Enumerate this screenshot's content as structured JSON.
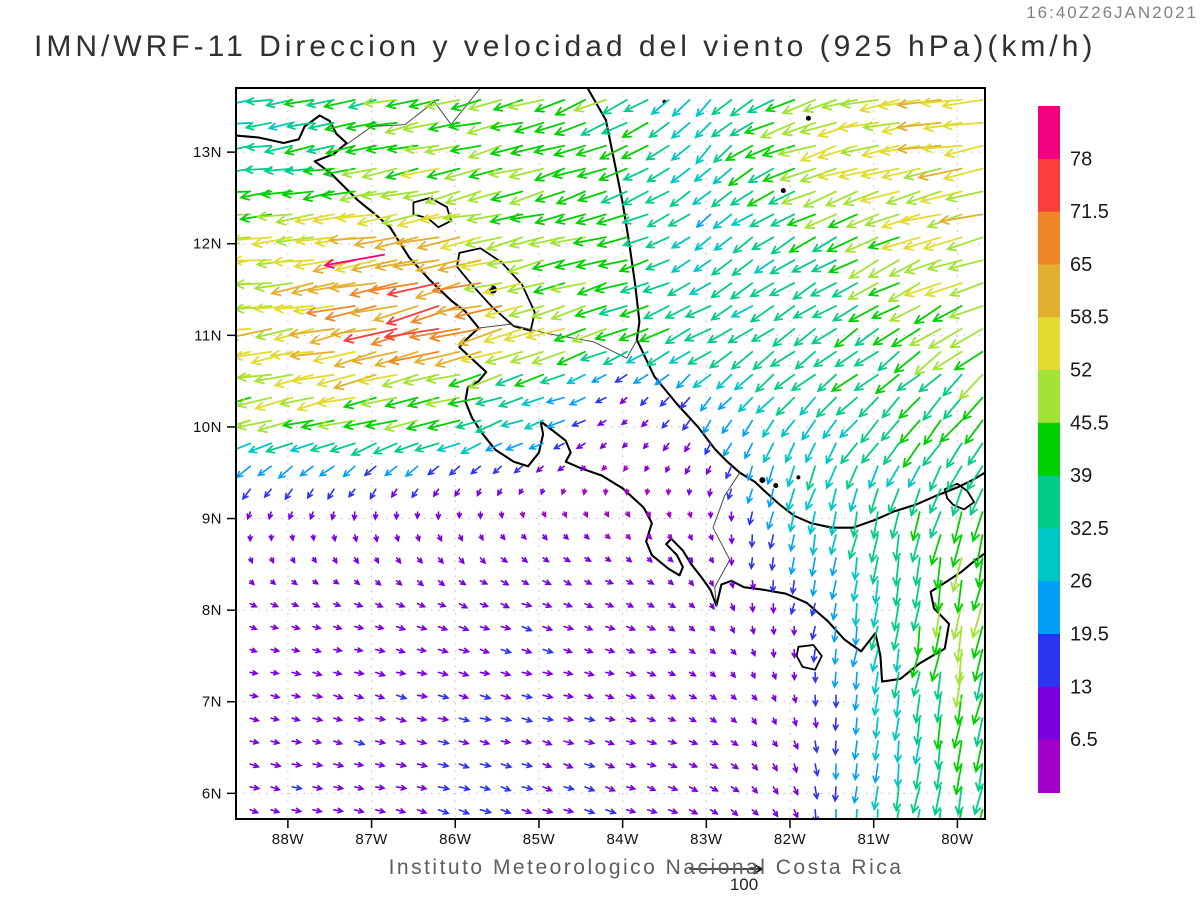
{
  "header": {
    "title": "IMN/WRF-11 Direccion y velocidad del viento (925 hPa)(km/h)",
    "timestamp": "16:40Z26JAN2021"
  },
  "caption": {
    "text": "Instituto Meteorologico Nacional Costa Rica",
    "reference_label": "100"
  },
  "axes": {
    "lat_ticks": [
      {
        "value": 13,
        "label": "13N"
      },
      {
        "value": 12,
        "label": "12N"
      },
      {
        "value": 11,
        "label": "11N"
      },
      {
        "value": 10,
        "label": "10N"
      },
      {
        "value": 9,
        "label": "9N"
      },
      {
        "value": 8,
        "label": "8N"
      },
      {
        "value": 7,
        "label": "7N"
      },
      {
        "value": 6,
        "label": "6N"
      }
    ],
    "lon_ticks": [
      {
        "value": -88,
        "label": "88W"
      },
      {
        "value": -87,
        "label": "87W"
      },
      {
        "value": -86,
        "label": "86W"
      },
      {
        "value": -85,
        "label": "85W"
      },
      {
        "value": -84,
        "label": "84W"
      },
      {
        "value": -83,
        "label": "83W"
      },
      {
        "value": -82,
        "label": "82W"
      },
      {
        "value": -81,
        "label": "81W"
      },
      {
        "value": -80,
        "label": "80W"
      }
    ]
  },
  "colorbar": {
    "labels_top_to_bottom": [
      "78",
      "71.5",
      "65",
      "58.5",
      "52",
      "45.5",
      "39",
      "32.5",
      "26",
      "19.5",
      "13",
      "6.5"
    ]
  },
  "chart_data": {
    "type": "vector_field",
    "title": "IMN/WRF-11 Direccion y velocidad del viento (925 hPa)(km/h)",
    "timestamp": "16:40Z26JAN2021",
    "level": "925 hPa",
    "units": "km/h",
    "lon_range": [
      -88.62,
      -79.67
    ],
    "lat_range": [
      5.72,
      13.7
    ],
    "reference_vector": 100,
    "speed_bin_edges": [
      6.5,
      13,
      19.5,
      26,
      32.5,
      39,
      45.5,
      52,
      58.5,
      65,
      71.5,
      78
    ],
    "speed_bin_colors": [
      "#A500C9",
      "#7A00E0",
      "#2B35F0",
      "#019FF8",
      "#00C6C6",
      "#01CC89",
      "#00D000",
      "#A2E336",
      "#E2DC30",
      "#E3AF2F",
      "#F08627",
      "#FA3D3D",
      "#F0017E"
    ],
    "grid": {
      "lons": [
        -89,
        -88,
        -87,
        -86,
        -85,
        -84,
        -83,
        -82,
        -81,
        -80,
        -79
      ],
      "lats": [
        6,
        7,
        8,
        9,
        9.5,
        10,
        10.5,
        11,
        12,
        13,
        14
      ],
      "u": [
        [
          11,
          12,
          12,
          13,
          12,
          12,
          10,
          5,
          -3,
          -7,
          -6
        ],
        [
          10,
          11,
          12,
          13,
          12,
          11,
          8,
          3,
          -4,
          -8,
          -8
        ],
        [
          8,
          9,
          10,
          11,
          12,
          10,
          6,
          -2,
          -5,
          -8,
          -10
        ],
        [
          -2,
          -1,
          0,
          2,
          4,
          3,
          2,
          -5,
          -8,
          -10,
          -12
        ],
        [
          -15,
          -14,
          -12,
          -10,
          -6,
          -2,
          -4,
          -10,
          -14,
          -16,
          -18
        ],
        [
          -40,
          -42,
          -44,
          -38,
          -26,
          -6,
          -10,
          -15,
          -22,
          -25,
          -28
        ],
        [
          -48,
          -50,
          -52,
          -45,
          -35,
          -10,
          -18,
          -25,
          -30,
          -28,
          -32
        ],
        [
          -52,
          -55,
          -66,
          -74,
          -50,
          -42,
          -35,
          -30,
          -32,
          -40,
          -45
        ],
        [
          -50,
          -52,
          -60,
          -58,
          -45,
          -40,
          -22,
          -28,
          -42,
          -50,
          -55
        ],
        [
          -32,
          -35,
          -40,
          -45,
          -42,
          -36,
          -20,
          -44,
          -52,
          -55,
          -62
        ],
        [
          -30,
          -34,
          -40,
          -44,
          -44,
          -38,
          -14,
          -40,
          -52,
          -58,
          -66
        ]
      ],
      "v": [
        [
          -3,
          -3,
          -3,
          -4,
          -4,
          -4,
          -5,
          -10,
          -28,
          -40,
          -36
        ],
        [
          -2,
          -2,
          -3,
          -3,
          -3,
          -3,
          -4,
          -8,
          -25,
          -42,
          -38
        ],
        [
          -3,
          -3,
          -3,
          -4,
          -4,
          -4,
          -6,
          -12,
          -30,
          -46,
          -40
        ],
        [
          -8,
          -8,
          -9,
          -8,
          -6,
          -4,
          -6,
          -25,
          -35,
          -40,
          -38
        ],
        [
          -14,
          -14,
          -13,
          -10,
          -6,
          -4,
          -10,
          -28,
          -30,
          -32,
          -30
        ],
        [
          -10,
          -10,
          -12,
          -12,
          -10,
          -5,
          -15,
          -25,
          -28,
          -30,
          -32
        ],
        [
          -10,
          -10,
          -12,
          -12,
          -12,
          -8,
          -18,
          -22,
          -25,
          -28,
          -30
        ],
        [
          -8,
          -8,
          -15,
          -18,
          -15,
          -15,
          -18,
          -20,
          -22,
          -25,
          -20
        ],
        [
          -5,
          -6,
          -10,
          -12,
          -10,
          -12,
          -15,
          -18,
          -20,
          -15,
          -12
        ],
        [
          -5,
          -6,
          -8,
          -10,
          -12,
          -16,
          -22,
          -18,
          -12,
          -10,
          -8
        ],
        [
          -6,
          -7,
          -9,
          -9,
          -11,
          -20,
          -24,
          -14,
          -10,
          -10,
          -9
        ]
      ]
    },
    "extra_arrows": [
      {
        "lon": -86.85,
        "lat": 11.88,
        "u": -78,
        "v": -14
      }
    ]
  },
  "map": {
    "features": [
      {
        "name": "pacific-coast",
        "type": "coast",
        "points": [
          [
            -88.62,
            13.18
          ],
          [
            -88.35,
            13.16
          ],
          [
            -88.05,
            13.1
          ],
          [
            -87.87,
            13.14
          ],
          [
            -87.8,
            13.28
          ],
          [
            -87.62,
            13.4
          ],
          [
            -87.5,
            13.34
          ],
          [
            -87.42,
            13.2
          ],
          [
            -87.3,
            13.1
          ],
          [
            -87.45,
            12.98
          ],
          [
            -87.68,
            12.9
          ],
          [
            -87.5,
            12.78
          ],
          [
            -87.17,
            12.48
          ],
          [
            -86.93,
            12.3
          ],
          [
            -86.78,
            12.18
          ],
          [
            -86.55,
            11.85
          ],
          [
            -86.3,
            11.6
          ],
          [
            -86.05,
            11.38
          ],
          [
            -85.88,
            11.26
          ],
          [
            -85.72,
            11.08
          ],
          [
            -85.85,
            10.97
          ],
          [
            -85.95,
            10.87
          ],
          [
            -85.75,
            10.7
          ],
          [
            -85.63,
            10.6
          ],
          [
            -85.72,
            10.5
          ],
          [
            -85.85,
            10.43
          ],
          [
            -85.88,
            10.28
          ],
          [
            -85.8,
            10.1
          ],
          [
            -85.67,
            9.92
          ],
          [
            -85.52,
            9.75
          ],
          [
            -85.3,
            9.62
          ],
          [
            -85.13,
            9.57
          ],
          [
            -85.0,
            9.72
          ],
          [
            -84.95,
            9.92
          ],
          [
            -84.98,
            10.06
          ],
          [
            -84.82,
            9.95
          ],
          [
            -84.68,
            9.85
          ],
          [
            -84.62,
            9.72
          ],
          [
            -84.68,
            9.62
          ],
          [
            -84.5,
            9.55
          ],
          [
            -84.25,
            9.47
          ],
          [
            -84.0,
            9.33
          ],
          [
            -83.75,
            9.12
          ],
          [
            -83.65,
            8.95
          ],
          [
            -83.72,
            8.75
          ],
          [
            -83.65,
            8.6
          ],
          [
            -83.45,
            8.45
          ],
          [
            -83.32,
            8.38
          ],
          [
            -83.28,
            8.47
          ],
          [
            -83.35,
            8.6
          ],
          [
            -83.48,
            8.72
          ],
          [
            -83.42,
            8.78
          ],
          [
            -83.28,
            8.65
          ],
          [
            -83.18,
            8.5
          ],
          [
            -83.05,
            8.35
          ],
          [
            -82.95,
            8.22
          ],
          [
            -82.88,
            8.05
          ],
          [
            -82.82,
            8.28
          ],
          [
            -82.7,
            8.32
          ],
          [
            -82.55,
            8.25
          ],
          [
            -82.3,
            8.22
          ],
          [
            -82.05,
            8.18
          ],
          [
            -81.8,
            8.08
          ],
          [
            -81.55,
            7.88
          ],
          [
            -81.35,
            7.68
          ],
          [
            -81.15,
            7.55
          ],
          [
            -80.98,
            7.75
          ],
          [
            -80.92,
            7.5
          ],
          [
            -80.9,
            7.22
          ],
          [
            -80.68,
            7.25
          ],
          [
            -80.45,
            7.42
          ],
          [
            -80.15,
            7.58
          ],
          [
            -80.1,
            7.85
          ],
          [
            -80.28,
            8.02
          ],
          [
            -80.32,
            8.2
          ],
          [
            -80.15,
            8.3
          ],
          [
            -79.95,
            8.42
          ],
          [
            -79.78,
            8.55
          ],
          [
            -79.67,
            8.62
          ]
        ]
      },
      {
        "name": "caribbean-coast",
        "type": "coast",
        "points": [
          [
            -84.42,
            13.7
          ],
          [
            -84.2,
            13.35
          ],
          [
            -84.1,
            12.9
          ],
          [
            -84.0,
            12.45
          ],
          [
            -83.92,
            12.0
          ],
          [
            -83.85,
            11.55
          ],
          [
            -83.8,
            11.15
          ],
          [
            -83.83,
            10.95
          ],
          [
            -83.62,
            10.55
          ],
          [
            -83.35,
            10.25
          ],
          [
            -83.1,
            10.0
          ],
          [
            -82.9,
            9.76
          ],
          [
            -82.76,
            9.63
          ],
          [
            -82.6,
            9.5
          ],
          [
            -82.42,
            9.4
          ],
          [
            -82.28,
            9.28
          ],
          [
            -82.12,
            9.15
          ],
          [
            -81.95,
            9.03
          ],
          [
            -81.75,
            8.95
          ],
          [
            -81.5,
            8.9
          ],
          [
            -81.25,
            8.9
          ],
          [
            -81.0,
            8.98
          ],
          [
            -80.75,
            9.08
          ],
          [
            -80.5,
            9.15
          ],
          [
            -80.25,
            9.25
          ],
          [
            -80.0,
            9.34
          ],
          [
            -79.82,
            9.42
          ],
          [
            -79.67,
            9.5
          ]
        ]
      },
      {
        "name": "lake-managua",
        "type": "lake",
        "points": [
          [
            -86.5,
            12.45
          ],
          [
            -86.3,
            12.5
          ],
          [
            -86.1,
            12.4
          ],
          [
            -86.05,
            12.25
          ],
          [
            -86.2,
            12.18
          ],
          [
            -86.33,
            12.28
          ],
          [
            -86.5,
            12.32
          ],
          [
            -86.5,
            12.45
          ]
        ]
      },
      {
        "name": "lake-nicaragua",
        "type": "lake",
        "points": [
          [
            -85.95,
            11.9
          ],
          [
            -85.7,
            11.95
          ],
          [
            -85.45,
            11.8
          ],
          [
            -85.2,
            11.55
          ],
          [
            -85.05,
            11.25
          ],
          [
            -85.1,
            11.05
          ],
          [
            -85.3,
            11.1
          ],
          [
            -85.55,
            11.3
          ],
          [
            -85.8,
            11.55
          ],
          [
            -85.98,
            11.75
          ],
          [
            -85.95,
            11.9
          ]
        ]
      },
      {
        "name": "gatun-lake",
        "type": "lake",
        "points": [
          [
            -80.15,
            9.32
          ],
          [
            -80.0,
            9.38
          ],
          [
            -79.88,
            9.3
          ],
          [
            -79.8,
            9.18
          ],
          [
            -79.92,
            9.1
          ],
          [
            -80.05,
            9.15
          ],
          [
            -80.12,
            9.22
          ],
          [
            -80.15,
            9.32
          ]
        ]
      },
      {
        "name": "coiba-island",
        "type": "lake",
        "points": [
          [
            -81.9,
            7.6
          ],
          [
            -81.72,
            7.62
          ],
          [
            -81.62,
            7.5
          ],
          [
            -81.7,
            7.35
          ],
          [
            -81.85,
            7.38
          ],
          [
            -81.92,
            7.5
          ],
          [
            -81.9,
            7.6
          ]
        ]
      },
      {
        "name": "honduras-nicaragua-border",
        "type": "border",
        "points": [
          [
            -87.35,
            13.05
          ],
          [
            -87.0,
            13.28
          ],
          [
            -86.6,
            13.3
          ],
          [
            -86.25,
            13.55
          ],
          [
            -86.05,
            13.3
          ],
          [
            -85.7,
            13.7
          ]
        ]
      },
      {
        "name": "nicaragua-costarica-border",
        "type": "border",
        "points": [
          [
            -85.72,
            11.08
          ],
          [
            -85.35,
            11.12
          ],
          [
            -84.9,
            11.02
          ],
          [
            -84.35,
            10.93
          ],
          [
            -83.95,
            10.75
          ],
          [
            -83.83,
            10.95
          ]
        ]
      },
      {
        "name": "costarica-panama-border",
        "type": "border",
        "points": [
          [
            -82.6,
            9.5
          ],
          [
            -82.78,
            9.25
          ],
          [
            -82.92,
            8.9
          ],
          [
            -82.72,
            8.55
          ],
          [
            -82.9,
            8.25
          ],
          [
            -82.88,
            8.05
          ]
        ]
      }
    ],
    "island_dots": [
      {
        "name": "ometepe-island",
        "lon": -85.55,
        "lat": 11.5,
        "r": 4
      },
      {
        "name": "providencia-island",
        "lon": -81.78,
        "lat": 13.37,
        "r": 2.5
      },
      {
        "name": "san-andres-island",
        "lon": -82.08,
        "lat": 12.58,
        "r": 2.5
      },
      {
        "name": "miskito-cay",
        "lon": -83.5,
        "lat": 13.55,
        "r": 2
      },
      {
        "name": "bocas-island-1",
        "lon": -82.33,
        "lat": 9.42,
        "r": 3
      },
      {
        "name": "bocas-island-2",
        "lon": -82.17,
        "lat": 9.36,
        "r": 2.5
      },
      {
        "name": "escudo-island",
        "lon": -81.9,
        "lat": 9.45,
        "r": 2
      }
    ]
  }
}
